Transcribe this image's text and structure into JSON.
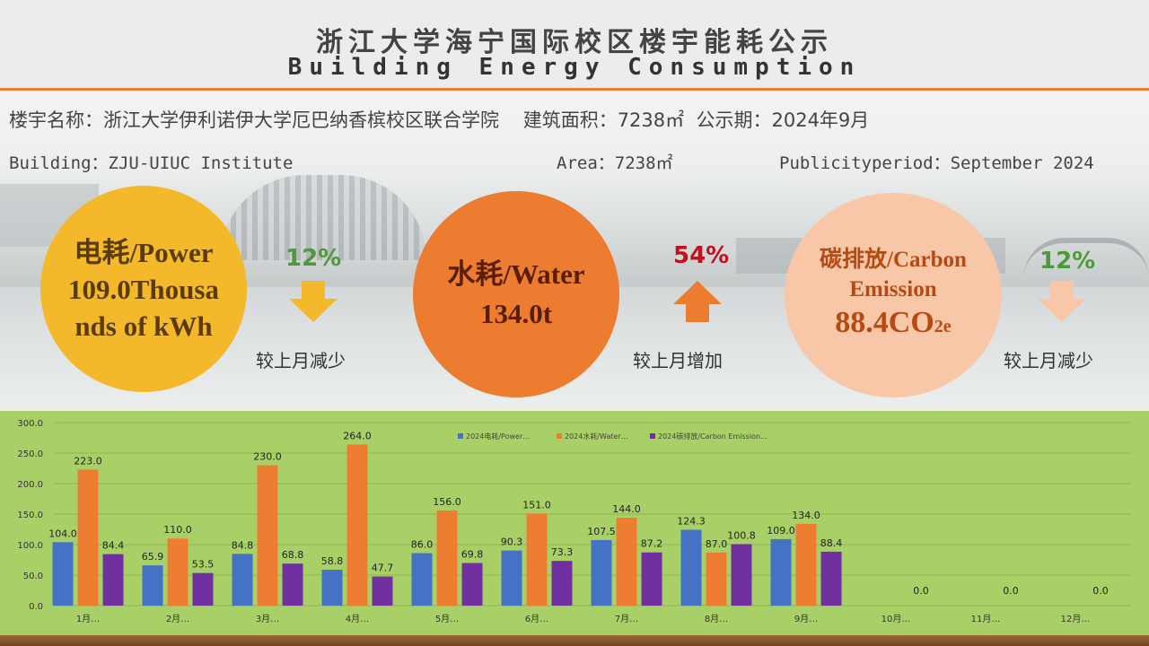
{
  "header": {
    "title_cn": "浙江大学海宁国际校区楼宇能耗公示",
    "title_en": "Building Energy Consumption"
  },
  "info": {
    "line1": "楼宇名称：浙江大学伊利诺伊大学厄巴纳香槟校区联合学院    建筑面积：7238㎡  公示期：2024年9月",
    "building_en": "Building：ZJU-UIUC Institute",
    "area_en": "Area：7238㎡",
    "period_en": "Publicityperiod：September 2024"
  },
  "power": {
    "line1": "电耗/Power",
    "line2": "109.0Thousa",
    "line3": "nds of kWh",
    "pct": "12%",
    "note": "较上月减少",
    "trend": "down",
    "color": "#f3b92b"
  },
  "water": {
    "line1": "水耗/Water",
    "line2": "134.0t",
    "pct": "54%",
    "note": "较上月增加",
    "trend": "up",
    "color": "#ec7c30"
  },
  "carbon": {
    "line1": "碳排放/Carbon",
    "line2": "Emission",
    "value": "88.4CO",
    "value_sub": "2e",
    "pct": "12%",
    "note": "较上月减少",
    "trend": "down",
    "color": "#f8c7a7"
  },
  "colors": {
    "accent_line": "#ed7d31",
    "pct_down": "#4e9a3a",
    "pct_up": "#c0111c",
    "chart_bg": "#a9d067",
    "series_power": "#4472c4",
    "series_water": "#ed7d31",
    "series_carbon": "#7030a0"
  },
  "chart_data": {
    "type": "bar",
    "categories": [
      "1月…",
      "2月…",
      "3月…",
      "4月…",
      "5月…",
      "6月…",
      "7月…",
      "8月…",
      "9月…",
      "10月…",
      "11月…",
      "12月…"
    ],
    "series": [
      {
        "name": "2024电耗/Power…",
        "color": "#4472c4",
        "values": [
          104.0,
          65.9,
          84.8,
          58.8,
          86.0,
          90.3,
          107.5,
          124.3,
          109.0,
          null,
          null,
          null
        ]
      },
      {
        "name": "2024水耗/Water…",
        "color": "#ed7d31",
        "values": [
          223.0,
          110.0,
          230.0,
          264.0,
          156.0,
          151.0,
          144.0,
          87.0,
          134.0,
          null,
          null,
          null
        ]
      },
      {
        "name": "2024碳排放/Carbon Emission…",
        "color": "#7030a0",
        "values": [
          84.4,
          53.5,
          68.8,
          47.7,
          69.8,
          73.3,
          87.2,
          100.8,
          88.4,
          0.0,
          0.0,
          0.0
        ]
      }
    ],
    "value_labels": [
      [
        "104.0",
        "65.9",
        "84.8",
        "58.8",
        "86.0",
        "90.3",
        "107.5",
        "124.3",
        "109.0",
        "",
        "",
        ""
      ],
      [
        "223.0",
        "110.0",
        "230.0",
        "264.0",
        "156.0",
        "151.0",
        "144.0",
        "87.0",
        "134.0",
        "",
        "",
        ""
      ],
      [
        "84.4",
        "53.5",
        "68.8",
        "47.7",
        "69.8",
        "73.3",
        "87.2",
        "100.8",
        "88.4",
        "0.0",
        "0.0",
        "0.0"
      ]
    ],
    "y_ticks": [
      "0.0",
      "50.0",
      "100.0",
      "150.0",
      "200.0",
      "250.0",
      "300.0"
    ],
    "ylim": [
      0,
      300
    ],
    "grid": true,
    "legend": "top-center"
  }
}
